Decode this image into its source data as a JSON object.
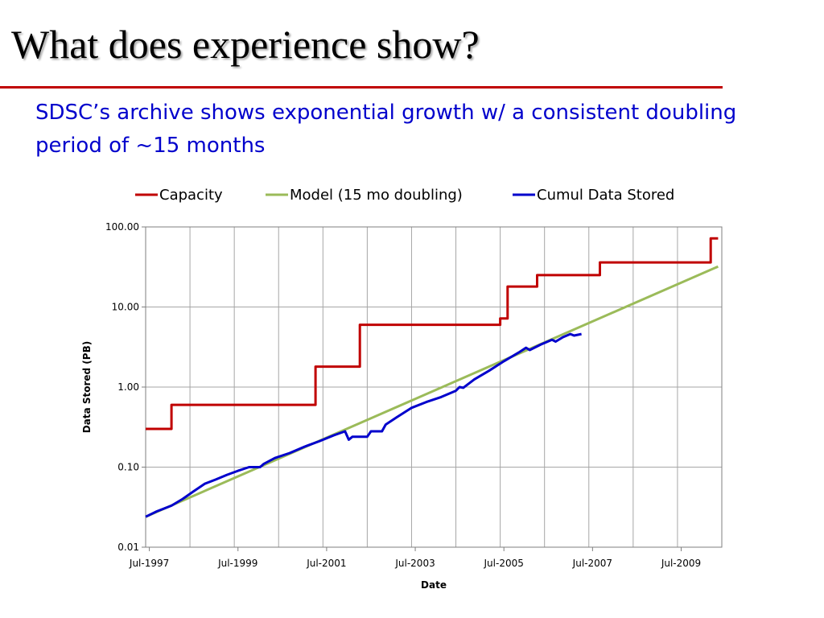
{
  "slide": {
    "title": "What does experience show?",
    "subtitle": "SDSC’s archive shows exponential growth w/ a consistent doubling period of ~15 months"
  },
  "colors": {
    "title_rule": "#c00000",
    "subtitle_text": "#0000cc",
    "capacity": "#c00000",
    "model": "#9bbb59",
    "cumul": "#0000cc",
    "grid": "#a6a6a6"
  },
  "chart_data": {
    "type": "line",
    "xlabel": "Date",
    "ylabel": "Data Stored (PB)",
    "yscale": "log",
    "ylim": [
      0.01,
      100
    ],
    "xlim": [
      "1997-06",
      "2010-06"
    ],
    "grid": true,
    "legend_position": "top",
    "x_tick_labels": [
      "Jul-1997",
      "Jul-1999",
      "Jul-2001",
      "Jul-2003",
      "Jul-2005",
      "Jul-2007",
      "Jul-2009"
    ],
    "y_tick_labels": [
      "100.00",
      "10.00",
      "1.00",
      "0.10",
      "0.01"
    ],
    "series": [
      {
        "name": "Capacity",
        "color": "#c00000",
        "shape": "step",
        "points": [
          [
            "1997-06",
            0.3
          ],
          [
            "1998-01",
            0.3
          ],
          [
            "1998-01",
            0.6
          ],
          [
            "2001-04",
            0.6
          ],
          [
            "2001-04",
            1.8
          ],
          [
            "2002-04",
            1.8
          ],
          [
            "2002-04",
            6.0
          ],
          [
            "2005-06",
            6.0
          ],
          [
            "2005-06",
            7.2
          ],
          [
            "2005-08",
            7.2
          ],
          [
            "2005-08",
            18.0
          ],
          [
            "2006-04",
            18.0
          ],
          [
            "2006-04",
            25.0
          ],
          [
            "2007-09",
            25.0
          ],
          [
            "2007-09",
            36.0
          ],
          [
            "2010-03",
            36.0
          ],
          [
            "2010-03",
            72.0
          ],
          [
            "2010-05",
            72.0
          ]
        ]
      },
      {
        "name": "Model (15 mo doubling)",
        "color": "#9bbb59",
        "shape": "line",
        "points": [
          [
            "1997-06",
            0.024
          ],
          [
            "2010-05",
            32.0
          ]
        ]
      },
      {
        "name": "Cumul Data Stored",
        "color": "#0000cc",
        "shape": "line",
        "points": [
          [
            "1997-06",
            0.024
          ],
          [
            "1997-09",
            0.028
          ],
          [
            "1998-01",
            0.033
          ],
          [
            "1998-04",
            0.04
          ],
          [
            "1998-07",
            0.05
          ],
          [
            "1998-10",
            0.062
          ],
          [
            "1999-01",
            0.07
          ],
          [
            "1999-04",
            0.08
          ],
          [
            "1999-07",
            0.09
          ],
          [
            "1999-10",
            0.1
          ],
          [
            "2000-01",
            0.1
          ],
          [
            "2000-02",
            0.11
          ],
          [
            "2000-05",
            0.13
          ],
          [
            "2000-09",
            0.15
          ],
          [
            "2001-01",
            0.18
          ],
          [
            "2001-05",
            0.21
          ],
          [
            "2001-09",
            0.25
          ],
          [
            "2001-12",
            0.28
          ],
          [
            "2002-01",
            0.22
          ],
          [
            "2002-02",
            0.24
          ],
          [
            "2002-06",
            0.24
          ],
          [
            "2002-07",
            0.28
          ],
          [
            "2002-10",
            0.28
          ],
          [
            "2002-11",
            0.34
          ],
          [
            "2003-02",
            0.42
          ],
          [
            "2003-06",
            0.55
          ],
          [
            "2003-10",
            0.65
          ],
          [
            "2004-02",
            0.75
          ],
          [
            "2004-06",
            0.9
          ],
          [
            "2004-07",
            1.0
          ],
          [
            "2004-08",
            0.98
          ],
          [
            "2004-11",
            1.25
          ],
          [
            "2005-03",
            1.6
          ],
          [
            "2005-07",
            2.1
          ],
          [
            "2005-11",
            2.7
          ],
          [
            "2006-01",
            3.1
          ],
          [
            "2006-02",
            2.9
          ],
          [
            "2006-05",
            3.4
          ],
          [
            "2006-08",
            3.9
          ],
          [
            "2006-09",
            3.7
          ],
          [
            "2006-11",
            4.2
          ],
          [
            "2007-01",
            4.6
          ],
          [
            "2007-02",
            4.4
          ],
          [
            "2007-04",
            4.6
          ]
        ]
      }
    ]
  }
}
